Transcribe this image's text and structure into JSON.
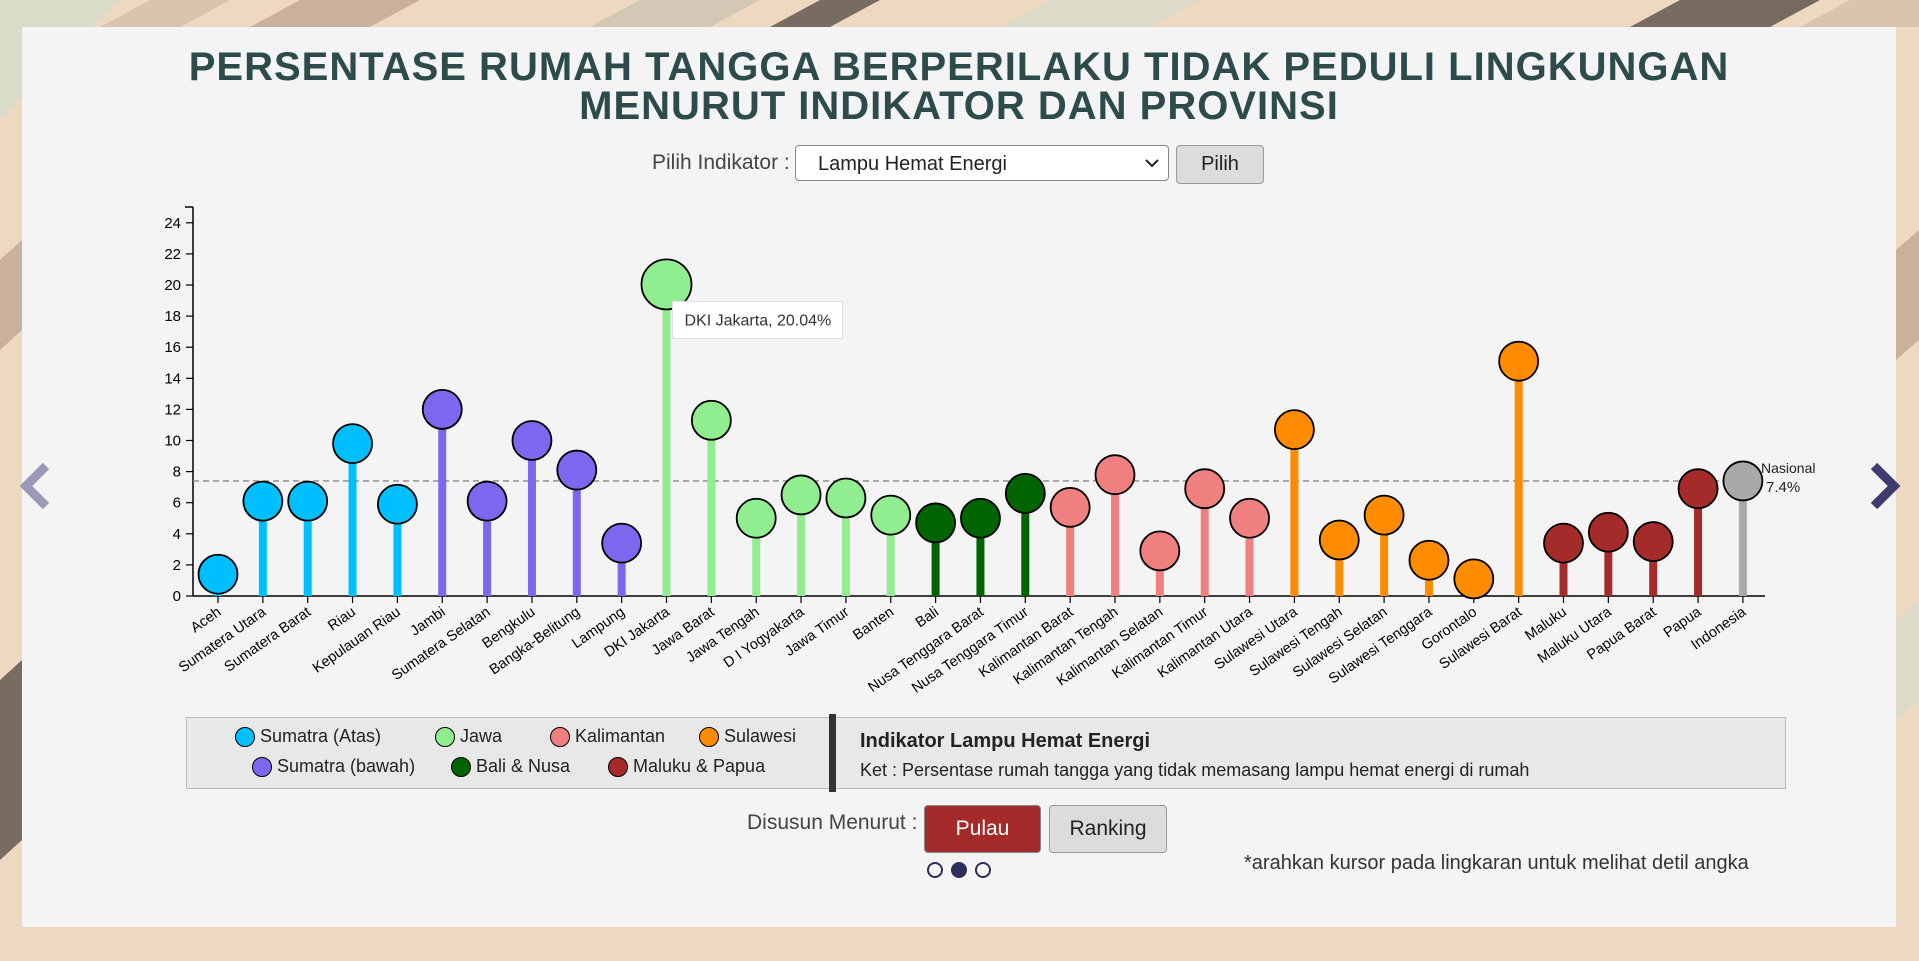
{
  "title_line1": "PERSENTASE RUMAH TANGGA BERPERILAKU TIDAK PEDULI LINGKUNGAN",
  "title_line2": "MENURUT INDIKATOR DAN PROVINSI",
  "indicator_label": "Pilih Indikator :",
  "indicator_value": "Lampu Hemat Energi",
  "pilih_label": "Pilih",
  "legend": [
    {
      "label": "Sumatra (Atas)",
      "color": "#00bfff"
    },
    {
      "label": "Jawa",
      "color": "#90ee90"
    },
    {
      "label": "Kalimantan",
      "color": "#f08080"
    },
    {
      "label": "Sulawesi",
      "color": "#ff8c00"
    },
    {
      "label": "Sumatra (bawah)",
      "color": "#7b68ee"
    },
    {
      "label": "Bali & Nusa",
      "color": "#006400"
    },
    {
      "label": "Maluku & Papua",
      "color": "#a52a2a"
    }
  ],
  "info": {
    "title": "Indikator Lampu Hemat Energi",
    "desc": "Ket : Persentase rumah tangga yang tidak memasang lampu hemat energi di rumah"
  },
  "sort_label": "Disusun Menurut :",
  "sort_pulau": "Pulau",
  "sort_ranking": "Ranking",
  "note": "*arahkan kursor pada lingkaran untuk melihat detil angka",
  "chart_data": {
    "type": "lollipop",
    "ylim": [
      0,
      25
    ],
    "yticks": [
      0,
      2,
      4,
      6,
      8,
      10,
      12,
      14,
      16,
      18,
      20,
      22,
      24
    ],
    "reference_line": {
      "label": "Nasional",
      "value_label": "7.4%",
      "value": 7.4
    },
    "tooltip": "DKI Jakarta, 20.04%",
    "tooltip_index": 10,
    "categories": [
      "Aceh",
      "Sumatera Utara",
      "Sumatera Barat",
      "Riau",
      "Kepulauan Riau",
      "Jambi",
      "Sumatera Selatan",
      "Bengkulu",
      "Bangka-Belitung",
      "Lampung",
      "DKI Jakarta",
      "Jawa Barat",
      "Jawa Tengah",
      "D I Yogyakarta",
      "Jawa Timur",
      "Banten",
      "Bali",
      "Nusa Tenggara Barat",
      "Nusa Tenggara Timur",
      "Kalimantan Barat",
      "Kalimantan Tengah",
      "Kalimantan Selatan",
      "Kalimantan Timur",
      "Kalimantan Utara",
      "Sulawesi Utara",
      "Sulawesi Tengah",
      "Sulawesi Selatan",
      "Sulawesi Tenggara",
      "Gorontalo",
      "Sulawesi Barat",
      "Maluku",
      "Maluku Utara",
      "Papua Barat",
      "Papua",
      "Indonesia"
    ],
    "values": [
      1.4,
      6.1,
      6.1,
      9.8,
      5.9,
      12.0,
      6.1,
      10.0,
      8.1,
      3.4,
      20.04,
      11.3,
      5.0,
      6.5,
      6.3,
      5.2,
      4.7,
      5.0,
      6.6,
      5.7,
      7.8,
      2.9,
      6.9,
      5.0,
      10.7,
      3.6,
      5.2,
      2.3,
      1.1,
      15.1,
      3.4,
      4.1,
      3.5,
      6.9,
      7.4
    ],
    "colors": [
      "#00bfff",
      "#00bfff",
      "#00bfff",
      "#00bfff",
      "#00bfff",
      "#7b68ee",
      "#7b68ee",
      "#7b68ee",
      "#7b68ee",
      "#7b68ee",
      "#90ee90",
      "#90ee90",
      "#90ee90",
      "#90ee90",
      "#90ee90",
      "#90ee90",
      "#006400",
      "#006400",
      "#006400",
      "#f08080",
      "#f08080",
      "#f08080",
      "#f08080",
      "#f08080",
      "#ff8c00",
      "#ff8c00",
      "#ff8c00",
      "#ff8c00",
      "#ff8c00",
      "#ff8c00",
      "#a52a2a",
      "#a52a2a",
      "#a52a2a",
      "#a52a2a",
      "#a9a9a9"
    ]
  }
}
